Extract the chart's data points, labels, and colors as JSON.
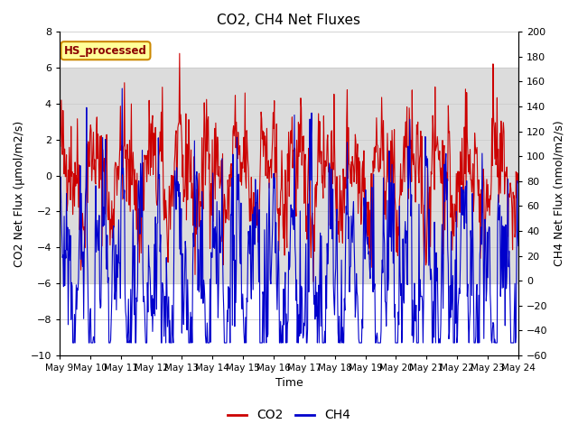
{
  "title": "CO2, CH4 Net Fluxes",
  "xlabel": "Time",
  "ylabel_left": "CO2 Net Flux (μmol/m2/s)",
  "ylabel_right": "CH4 Net Flux (nmol/m2/s)",
  "ylim_left": [
    -10,
    8
  ],
  "ylim_right": [
    -60,
    200
  ],
  "yticks_left": [
    -10,
    -8,
    -6,
    -4,
    -2,
    0,
    2,
    4,
    6,
    8
  ],
  "yticks_right": [
    -60,
    -40,
    -20,
    0,
    20,
    40,
    60,
    80,
    100,
    120,
    140,
    160,
    180,
    200
  ],
  "xtick_labels": [
    "May 9",
    "May 10",
    "May 11",
    "May 12",
    "May 13",
    "May 14",
    "May 15",
    "May 16",
    "May 17",
    "May 18",
    "May 19",
    "May 20",
    "May 21",
    "May 22",
    "May 23",
    "May 24"
  ],
  "co2_color": "#cc0000",
  "ch4_color": "#0000cc",
  "legend_label_co2": "CO2",
  "legend_label_ch4": "CH4",
  "annotation_text": "HS_processed",
  "annotation_bg": "#ffff99",
  "annotation_border": "#cc8800",
  "shaded_region": [
    -6,
    6
  ],
  "shaded_color": "#dcdcdc",
  "background_color": "#ffffff",
  "n_points": 800,
  "seed": 42
}
